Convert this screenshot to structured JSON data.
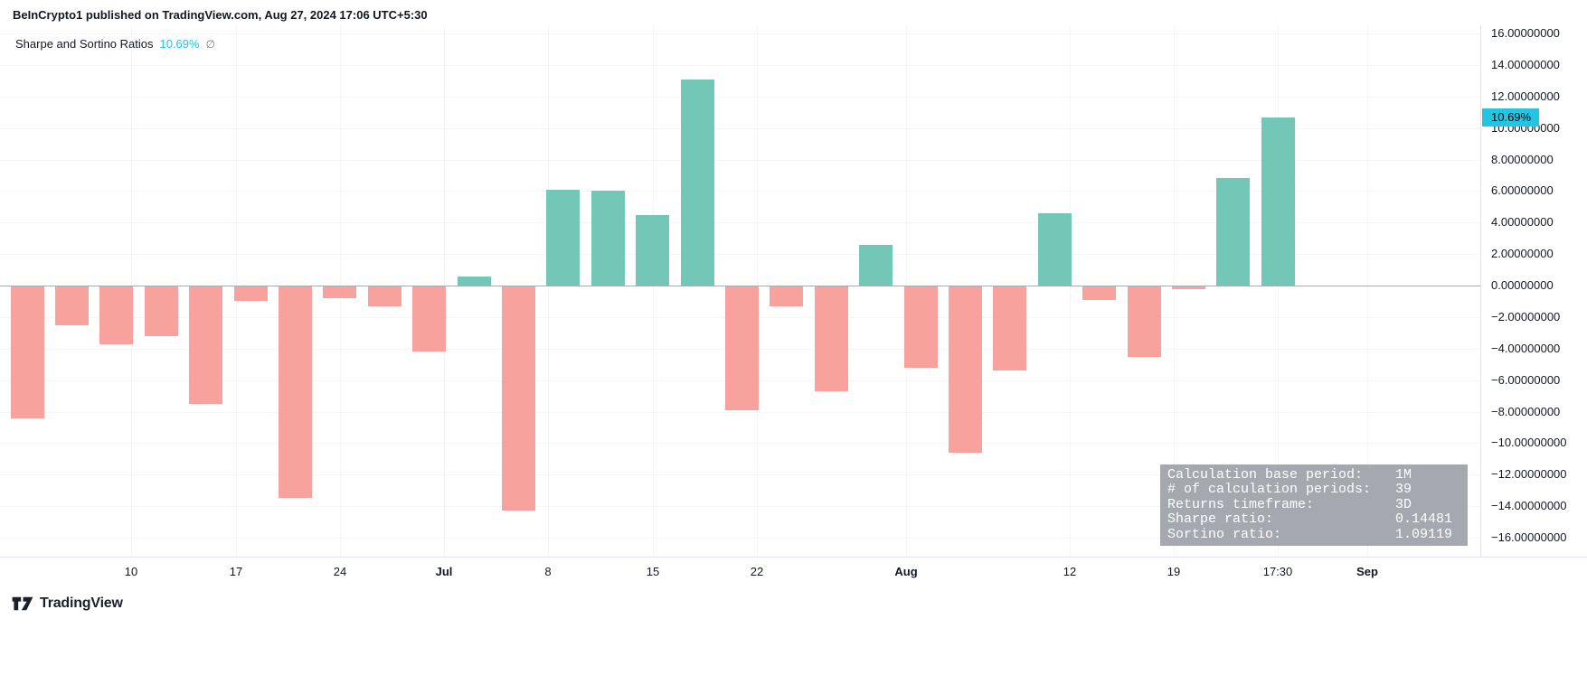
{
  "header": {
    "publish_line": "BeInCrypto1 published on TradingView.com, Aug 27, 2024 17:06 UTC+5:30"
  },
  "legend": {
    "title": "Sharpe and Sortino Ratios",
    "value": "10.69%",
    "suffix": "∅"
  },
  "price_axis": {
    "last_value_label": "10.69%"
  },
  "info_box": {
    "rows": [
      {
        "label": "Calculation base period:",
        "value": "1M"
      },
      {
        "label": "# of calculation periods:",
        "value": "39"
      },
      {
        "label": "Returns timeframe:",
        "value": "3D"
      },
      {
        "label": "Sharpe ratio:",
        "value": "0.14481"
      },
      {
        "label": "Sortino ratio:",
        "value": "1.09119"
      }
    ]
  },
  "footer": {
    "brand": "TradingView"
  },
  "colors": {
    "positive": "#72c7b6",
    "negative": "#f7a29c",
    "accent": "#24c5e2",
    "grid": "#f3f5f8",
    "zero_line": "#a8abb3",
    "infobox_bg": "rgba(150,153,161,0.85)"
  },
  "chart_data": {
    "type": "bar",
    "title": "Sharpe and Sortino Ratios",
    "ylabel": "",
    "xlabel": "",
    "ylim": [
      -16,
      16
    ],
    "grid": true,
    "legend_position": "top-left",
    "last_value": 10.69,
    "values": [
      -8.4,
      -2.5,
      -3.7,
      -3.2,
      -7.5,
      -1.0,
      -13.5,
      -0.8,
      -1.3,
      -4.2,
      0.6,
      -14.3,
      6.1,
      6.0,
      4.5,
      13.1,
      -7.9,
      -1.3,
      -6.7,
      2.6,
      -5.2,
      -10.6,
      -5.4,
      4.6,
      -0.9,
      -4.5,
      -0.25,
      6.8,
      10.69
    ],
    "y_ticks": [
      {
        "value": 16,
        "label": "16.00000000"
      },
      {
        "value": 14,
        "label": "14.00000000"
      },
      {
        "value": 12,
        "label": "12.00000000"
      },
      {
        "value": 10,
        "label": "10.00000000"
      },
      {
        "value": 8,
        "label": "8.00000000"
      },
      {
        "value": 6,
        "label": "6.00000000"
      },
      {
        "value": 4,
        "label": "4.00000000"
      },
      {
        "value": 2,
        "label": "2.00000000"
      },
      {
        "value": 0,
        "label": "0.00000000"
      },
      {
        "value": -2,
        "label": "−2.00000000"
      },
      {
        "value": -4,
        "label": "−4.00000000"
      },
      {
        "value": -6,
        "label": "−6.00000000"
      },
      {
        "value": -8,
        "label": "−8.00000000"
      },
      {
        "value": -10,
        "label": "−10.00000000"
      },
      {
        "value": -12,
        "label": "−12.00000000"
      },
      {
        "value": -14,
        "label": "−14.00000000"
      },
      {
        "value": -16,
        "label": "−16.00000000"
      }
    ],
    "x_ticks": [
      {
        "label": "10",
        "pos": 2.33,
        "bold": false
      },
      {
        "label": "17",
        "pos": 4.67,
        "bold": false
      },
      {
        "label": "24",
        "pos": 7,
        "bold": false
      },
      {
        "label": "Jul",
        "pos": 9.33,
        "bold": true
      },
      {
        "label": "8",
        "pos": 11.67,
        "bold": false
      },
      {
        "label": "15",
        "pos": 14,
        "bold": false
      },
      {
        "label": "22",
        "pos": 16.33,
        "bold": false
      },
      {
        "label": "Aug",
        "pos": 19.67,
        "bold": true
      },
      {
        "label": "12",
        "pos": 23.33,
        "bold": false
      },
      {
        "label": "19",
        "pos": 25.67,
        "bold": false
      },
      {
        "label": "17:30",
        "pos": 28,
        "bold": false
      },
      {
        "label": "Sep",
        "pos": 30,
        "bold": true
      }
    ]
  }
}
